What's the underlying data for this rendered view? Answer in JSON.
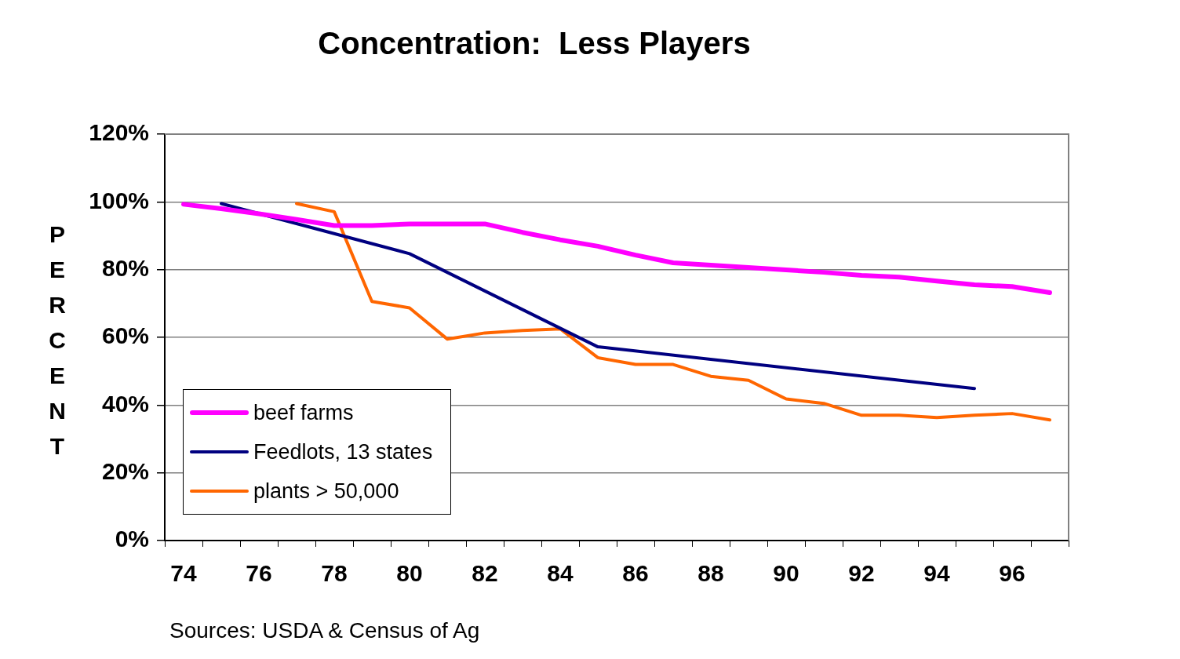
{
  "chart_data": {
    "type": "line",
    "title": "Concentration:  Less Players",
    "ylabel": "PERCENT",
    "categories": [
      "74",
      null,
      "76",
      null,
      "78",
      null,
      "80",
      null,
      "82",
      null,
      "84",
      null,
      "86",
      null,
      "88",
      null,
      "90",
      null,
      "92",
      null,
      "94",
      null,
      "96",
      null
    ],
    "series": [
      {
        "name": "beef farms",
        "color": "#ff00ff",
        "values": [
          99.3,
          98,
          96.5,
          94.8,
          93,
          93,
          93.5,
          93.5,
          93.5,
          91,
          88.8,
          86.9,
          84.3,
          82,
          81.3,
          80.6,
          79.9,
          79.2,
          78.3,
          77.8,
          76.6,
          75.5,
          75,
          73.2
        ]
      },
      {
        "name": "Feedlots, 13 states",
        "color": "#000080",
        "values": [
          null,
          99.5,
          null,
          null,
          null,
          null,
          84.7,
          null,
          null,
          null,
          null,
          57.2,
          null,
          null,
          null,
          null,
          null,
          null,
          null,
          null,
          null,
          44.9,
          null,
          null
        ]
      },
      {
        "name": "plants > 50,000",
        "color": "#ff6600",
        "values": [
          null,
          null,
          null,
          99.5,
          97.1,
          70.6,
          68.7,
          59.5,
          61.3,
          62,
          62.5,
          54,
          52,
          52,
          48.5,
          47.3,
          41.8,
          40.5,
          37,
          37,
          36.3,
          37,
          37.5,
          35.6
        ]
      }
    ],
    "ylim": [
      0,
      120
    ],
    "yticks": [
      {
        "value": 0,
        "label": "0%"
      },
      {
        "value": 20,
        "label": "20%"
      },
      {
        "value": 40,
        "label": "40%"
      },
      {
        "value": 60,
        "label": "60%"
      },
      {
        "value": 80,
        "label": "80%"
      },
      {
        "value": 100,
        "label": "100%"
      },
      {
        "value": 120,
        "label": "120%"
      }
    ],
    "grid": "y",
    "legend": "bottom left",
    "marker": "none",
    "annotations": [
      "Sources:  USDA & Census of Ag"
    ]
  }
}
